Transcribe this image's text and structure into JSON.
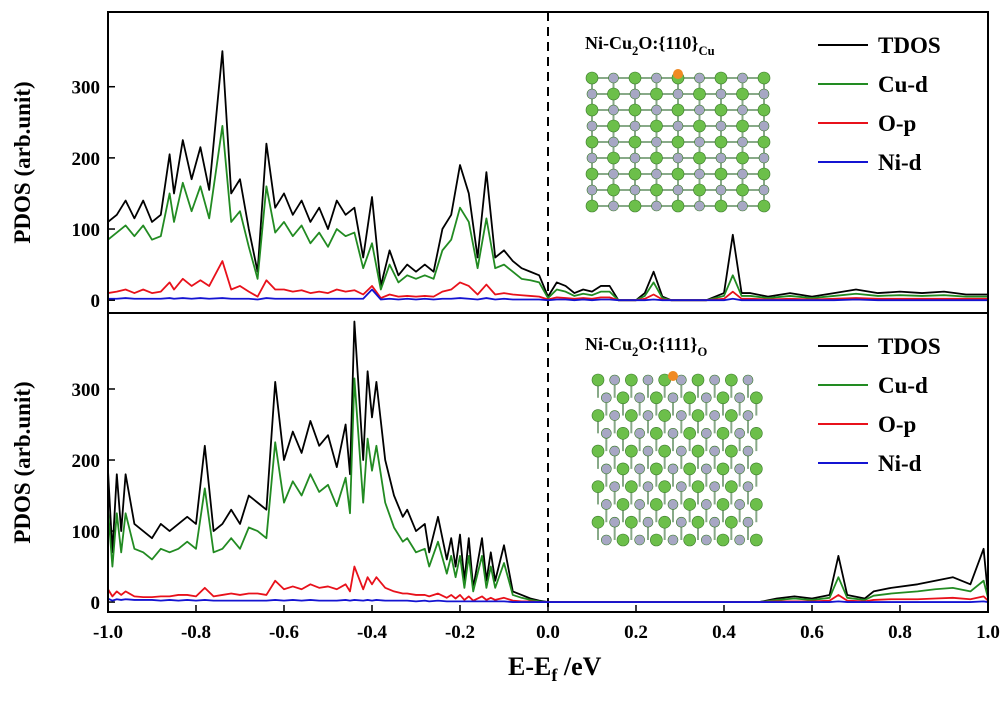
{
  "chart_data": [
    {
      "type": "line",
      "ylabel": "PDOS (arb.unit)",
      "annotation": [
        "Ni-Cu",
        "2",
        "O:{110}",
        "Cu"
      ],
      "xlim": [
        -1,
        1
      ],
      "ylim": [
        -18,
        405
      ],
      "yticks": [
        0,
        100,
        200,
        300
      ],
      "vline": 0,
      "legend": "upper right",
      "x": [
        -1,
        -0.98,
        -0.96,
        -0.94,
        -0.92,
        -0.9,
        -0.88,
        -0.86,
        -0.85,
        -0.83,
        -0.81,
        -0.79,
        -0.77,
        -0.74,
        -0.72,
        -0.7,
        -0.68,
        -0.66,
        -0.64,
        -0.62,
        -0.6,
        -0.58,
        -0.56,
        -0.54,
        -0.52,
        -0.5,
        -0.48,
        -0.46,
        -0.44,
        -0.42,
        -0.4,
        -0.38,
        -0.36,
        -0.34,
        -0.32,
        -0.3,
        -0.28,
        -0.26,
        -0.24,
        -0.22,
        -0.2,
        -0.18,
        -0.16,
        -0.14,
        -0.12,
        -0.1,
        -0.08,
        -0.06,
        -0.04,
        -0.02,
        0,
        0.02,
        0.04,
        0.06,
        0.08,
        0.1,
        0.12,
        0.14,
        0.16,
        0.2,
        0.22,
        0.24,
        0.26,
        0.28,
        0.36,
        0.4,
        0.42,
        0.44,
        0.46,
        0.5,
        0.55,
        0.6,
        0.65,
        0.7,
        0.75,
        0.8,
        0.85,
        0.9,
        0.95,
        1
      ],
      "series": [
        {
          "name": "TDOS",
          "color": "#000000",
          "values": [
            110,
            120,
            140,
            115,
            140,
            110,
            120,
            205,
            150,
            225,
            170,
            215,
            155,
            350,
            150,
            170,
            100,
            40,
            220,
            130,
            150,
            120,
            140,
            110,
            130,
            100,
            140,
            120,
            130,
            60,
            145,
            20,
            70,
            35,
            50,
            40,
            50,
            40,
            100,
            120,
            190,
            150,
            60,
            180,
            60,
            70,
            55,
            45,
            40,
            35,
            5,
            25,
            20,
            10,
            15,
            12,
            20,
            20,
            0,
            0,
            10,
            40,
            5,
            0,
            0,
            10,
            92,
            10,
            10,
            5,
            10,
            5,
            10,
            15,
            10,
            12,
            10,
            12,
            8,
            8
          ]
        },
        {
          "name": "Cu-d",
          "color": "#228b22",
          "values": [
            85,
            95,
            105,
            90,
            105,
            85,
            90,
            150,
            110,
            165,
            125,
            160,
            115,
            245,
            110,
            125,
            75,
            30,
            160,
            95,
            110,
            90,
            105,
            80,
            95,
            75,
            100,
            90,
            95,
            45,
            80,
            15,
            50,
            25,
            35,
            30,
            35,
            30,
            70,
            85,
            130,
            110,
            45,
            115,
            45,
            50,
            40,
            30,
            28,
            25,
            3,
            15,
            12,
            6,
            9,
            7,
            12,
            12,
            0,
            0,
            6,
            25,
            3,
            0,
            0,
            6,
            35,
            6,
            6,
            3,
            6,
            3,
            6,
            9,
            6,
            7,
            6,
            7,
            5,
            5
          ]
        },
        {
          "name": "O-p",
          "color": "#e8111b",
          "values": [
            10,
            12,
            15,
            10,
            15,
            10,
            12,
            25,
            15,
            30,
            20,
            28,
            20,
            55,
            15,
            20,
            12,
            5,
            28,
            15,
            15,
            12,
            14,
            10,
            12,
            10,
            15,
            12,
            14,
            8,
            20,
            3,
            8,
            5,
            6,
            5,
            6,
            5,
            12,
            15,
            25,
            20,
            8,
            22,
            8,
            10,
            8,
            7,
            6,
            5,
            1,
            4,
            3,
            2,
            3,
            2,
            4,
            4,
            0,
            0,
            2,
            8,
            1,
            0,
            0,
            2,
            12,
            2,
            2,
            1,
            2,
            1,
            2,
            3,
            2,
            2,
            2,
            2,
            2,
            2
          ]
        },
        {
          "name": "Ni-d",
          "color": "#1414d2",
          "values": [
            2,
            2,
            3,
            2,
            2,
            2,
            2,
            3,
            2,
            3,
            2,
            3,
            2,
            3,
            2,
            2,
            2,
            1,
            3,
            2,
            2,
            2,
            2,
            2,
            2,
            2,
            2,
            2,
            2,
            2,
            15,
            1,
            2,
            1,
            2,
            1,
            2,
            1,
            2,
            2,
            3,
            2,
            1,
            3,
            1,
            2,
            1,
            1,
            1,
            1,
            0,
            1,
            1,
            0,
            1,
            0,
            1,
            1,
            0,
            0,
            0,
            1,
            0,
            0,
            0,
            0,
            2,
            0,
            0,
            0,
            0,
            0,
            0,
            1,
            0,
            0,
            0,
            0,
            0,
            0
          ]
        }
      ]
    },
    {
      "type": "line",
      "ylabel": "PDOS (arb.unit)",
      "annotation": [
        "Ni-Cu",
        "2",
        "O:{111}",
        "O"
      ],
      "xlabel": [
        "E-E",
        "f",
        " /eV"
      ],
      "xlim": [
        -1,
        1
      ],
      "ylim": [
        -14,
        407
      ],
      "yticks": [
        0,
        100,
        200,
        300
      ],
      "vline": 0,
      "legend": "upper right",
      "xticks": [
        {
          "value": -1,
          "label": "-1.0"
        },
        -0.8,
        -0.6,
        -0.4,
        -0.2,
        {
          "value": 0,
          "label": "0.0"
        },
        0.2,
        0.4,
        0.6,
        0.8,
        {
          "value": 1,
          "label": "1.0"
        }
      ],
      "x": [
        -1,
        -0.99,
        -0.98,
        -0.97,
        -0.96,
        -0.94,
        -0.92,
        -0.9,
        -0.88,
        -0.86,
        -0.84,
        -0.82,
        -0.8,
        -0.78,
        -0.76,
        -0.74,
        -0.72,
        -0.7,
        -0.68,
        -0.66,
        -0.64,
        -0.62,
        -0.6,
        -0.58,
        -0.56,
        -0.54,
        -0.52,
        -0.5,
        -0.48,
        -0.46,
        -0.45,
        -0.44,
        -0.42,
        -0.41,
        -0.4,
        -0.39,
        -0.37,
        -0.35,
        -0.33,
        -0.32,
        -0.3,
        -0.28,
        -0.27,
        -0.25,
        -0.23,
        -0.22,
        -0.21,
        -0.2,
        -0.19,
        -0.18,
        -0.17,
        -0.15,
        -0.14,
        -0.13,
        -0.12,
        -0.1,
        -0.08,
        -0.06,
        -0.04,
        -0.02,
        0,
        0.2,
        0.48,
        0.52,
        0.56,
        0.6,
        0.64,
        0.66,
        0.68,
        0.72,
        0.74,
        0.78,
        0.84,
        0.88,
        0.92,
        0.96,
        0.99,
        1
      ],
      "series": [
        {
          "name": "TDOS",
          "color": "#000000",
          "values": [
            185,
            70,
            180,
            100,
            180,
            110,
            100,
            90,
            110,
            100,
            110,
            120,
            110,
            220,
            100,
            110,
            130,
            110,
            150,
            140,
            130,
            310,
            200,
            240,
            210,
            255,
            220,
            235,
            190,
            250,
            180,
            395,
            200,
            325,
            260,
            310,
            200,
            150,
            120,
            130,
            100,
            110,
            70,
            120,
            60,
            90,
            50,
            95,
            30,
            90,
            20,
            90,
            30,
            70,
            30,
            80,
            15,
            10,
            5,
            2,
            0,
            0,
            0,
            5,
            8,
            5,
            10,
            65,
            10,
            5,
            15,
            20,
            25,
            30,
            35,
            25,
            75,
            10
          ]
        },
        {
          "name": "Cu-d",
          "color": "#228b22",
          "values": [
            130,
            50,
            125,
            70,
            125,
            75,
            70,
            60,
            75,
            70,
            75,
            85,
            75,
            160,
            70,
            75,
            90,
            75,
            105,
            100,
            90,
            225,
            140,
            170,
            150,
            180,
            155,
            165,
            135,
            175,
            125,
            315,
            140,
            230,
            185,
            220,
            140,
            105,
            85,
            90,
            70,
            75,
            50,
            85,
            40,
            65,
            35,
            65,
            20,
            65,
            15,
            65,
            20,
            50,
            20,
            55,
            10,
            6,
            3,
            1,
            0,
            0,
            0,
            3,
            5,
            3,
            6,
            35,
            6,
            3,
            9,
            12,
            15,
            18,
            20,
            15,
            30,
            6
          ]
        },
        {
          "name": "O-p",
          "color": "#e8111b",
          "values": [
            18,
            8,
            15,
            10,
            15,
            8,
            7,
            7,
            8,
            8,
            10,
            10,
            8,
            20,
            8,
            10,
            12,
            10,
            12,
            12,
            10,
            30,
            18,
            22,
            18,
            25,
            20,
            22,
            18,
            25,
            15,
            50,
            18,
            35,
            25,
            35,
            20,
            15,
            12,
            12,
            10,
            10,
            8,
            12,
            6,
            10,
            5,
            10,
            3,
            8,
            2,
            8,
            3,
            6,
            3,
            6,
            2,
            1,
            1,
            0,
            0,
            0,
            0,
            1,
            1,
            1,
            2,
            10,
            2,
            1,
            3,
            4,
            4,
            5,
            6,
            4,
            8,
            2
          ]
        },
        {
          "name": "Ni-d",
          "color": "#1414d2",
          "values": [
            5,
            2,
            4,
            3,
            4,
            3,
            3,
            3,
            2,
            3,
            2,
            3,
            2,
            3,
            2,
            2,
            2,
            2,
            2,
            2,
            2,
            3,
            2,
            3,
            2,
            3,
            2,
            2,
            2,
            3,
            2,
            3,
            2,
            3,
            2,
            3,
            2,
            2,
            2,
            2,
            1,
            2,
            1,
            2,
            1,
            1,
            1,
            1,
            1,
            1,
            1,
            1,
            1,
            1,
            1,
            1,
            0,
            0,
            0,
            0,
            0,
            0,
            0,
            0,
            0,
            0,
            0,
            1,
            0,
            0,
            0,
            0,
            0,
            0,
            0,
            0,
            1,
            0
          ]
        }
      ]
    }
  ]
}
